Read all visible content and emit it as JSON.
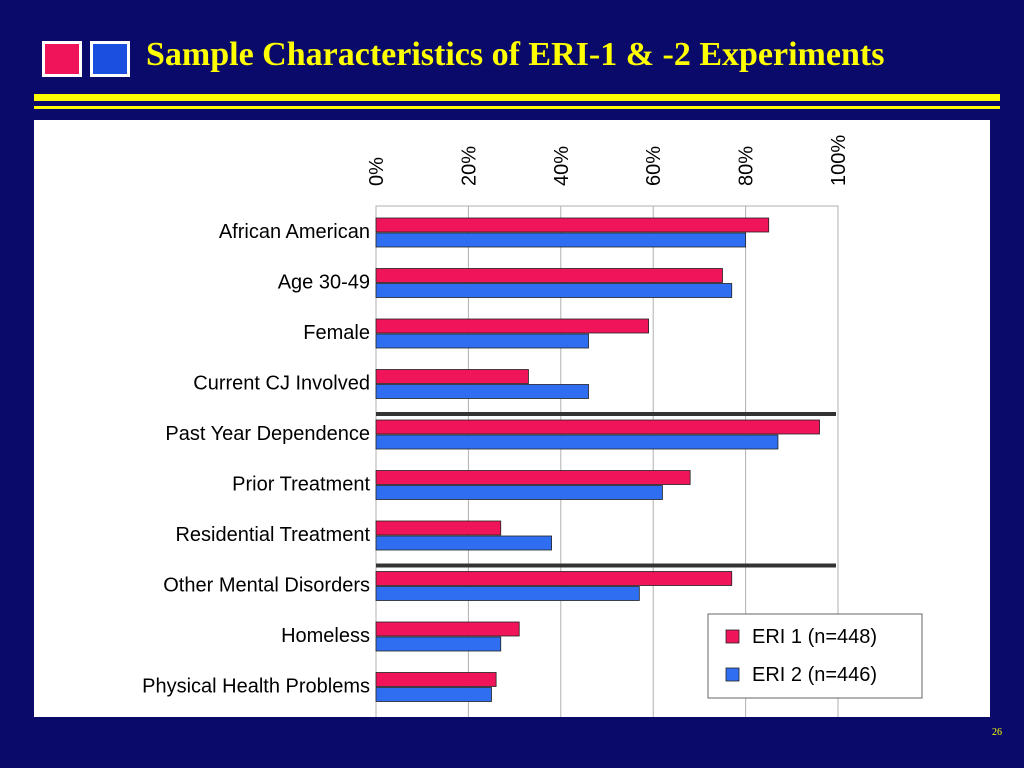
{
  "slide": {
    "title": "Sample Characteristics of ERI-1 & -2 Experiments",
    "page_number": "26"
  },
  "chart_data": {
    "type": "bar",
    "orientation": "horizontal",
    "title": "Sample Characteristics of ERI-1 & -2 Experiments",
    "categories": [
      "African American",
      "Age 30-49",
      "Female",
      "Current CJ Involved",
      "Past Year Dependence",
      "Prior Treatment",
      "Residential Treatment",
      "Other Mental Disorders",
      "Homeless",
      "Physical Health Problems"
    ],
    "series": [
      {
        "name": "ERI 1 (n=448)",
        "color": "#f0155a",
        "values": [
          85,
          75,
          59,
          33,
          96,
          68,
          27,
          77,
          31,
          26
        ]
      },
      {
        "name": "ERI 2 (n=446)",
        "color": "#2f6ef0",
        "values": [
          80,
          77,
          46,
          46,
          87,
          62,
          38,
          57,
          27,
          25
        ]
      }
    ],
    "xlim": [
      0,
      100
    ],
    "x_ticks": [
      "0%",
      "20%",
      "40%",
      "60%",
      "80%",
      "100%"
    ],
    "x_tick_values": [
      0,
      20,
      40,
      60,
      80,
      100
    ],
    "x_axis_position": "top",
    "grid": true,
    "legend_position": "bottom-right",
    "group_separators_after": [
      "Current CJ Involved",
      "Residential Treatment"
    ]
  }
}
